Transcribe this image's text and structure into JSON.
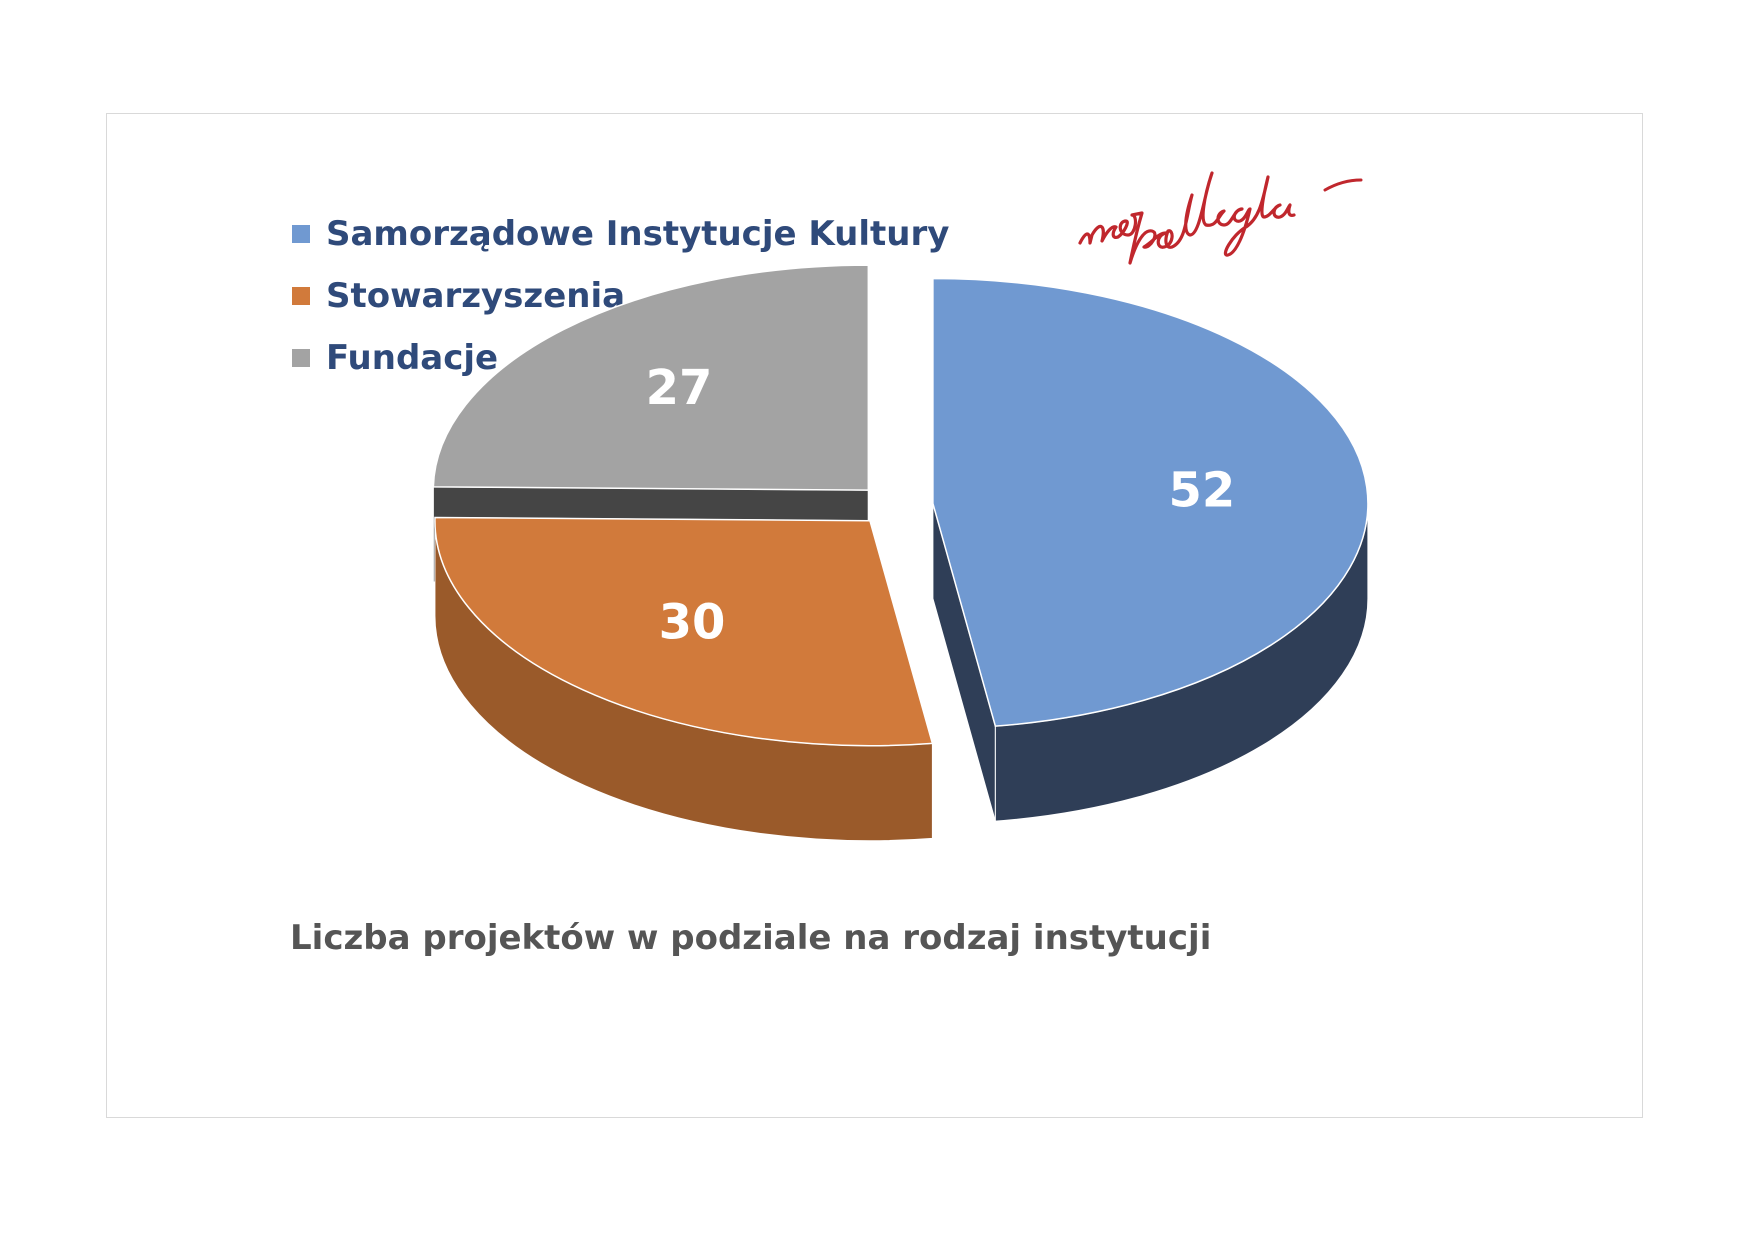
{
  "colors": {
    "samorzadowe_top": "#7099d1",
    "samorzadowe_side": "#2f3e57",
    "stowarzyszenia_top": "#d17a3b",
    "stowarzyszenia_side": "#9a5a2a",
    "fundacje_top": "#a3a3a3",
    "fundacje_side": "#454545",
    "logo": "#c0272d"
  },
  "logo": {
    "text": "niepodległa"
  },
  "chart_data": {
    "type": "pie",
    "variant": "3d-exploded",
    "title": "Liczba projektów w podziale na rodzaj instytucji",
    "legend_position": "top-left",
    "categories": [
      "Samorządowe Instytucje Kultury",
      "Stowarzyszenia",
      "Fundacje"
    ],
    "values": [
      52,
      30,
      27
    ]
  }
}
